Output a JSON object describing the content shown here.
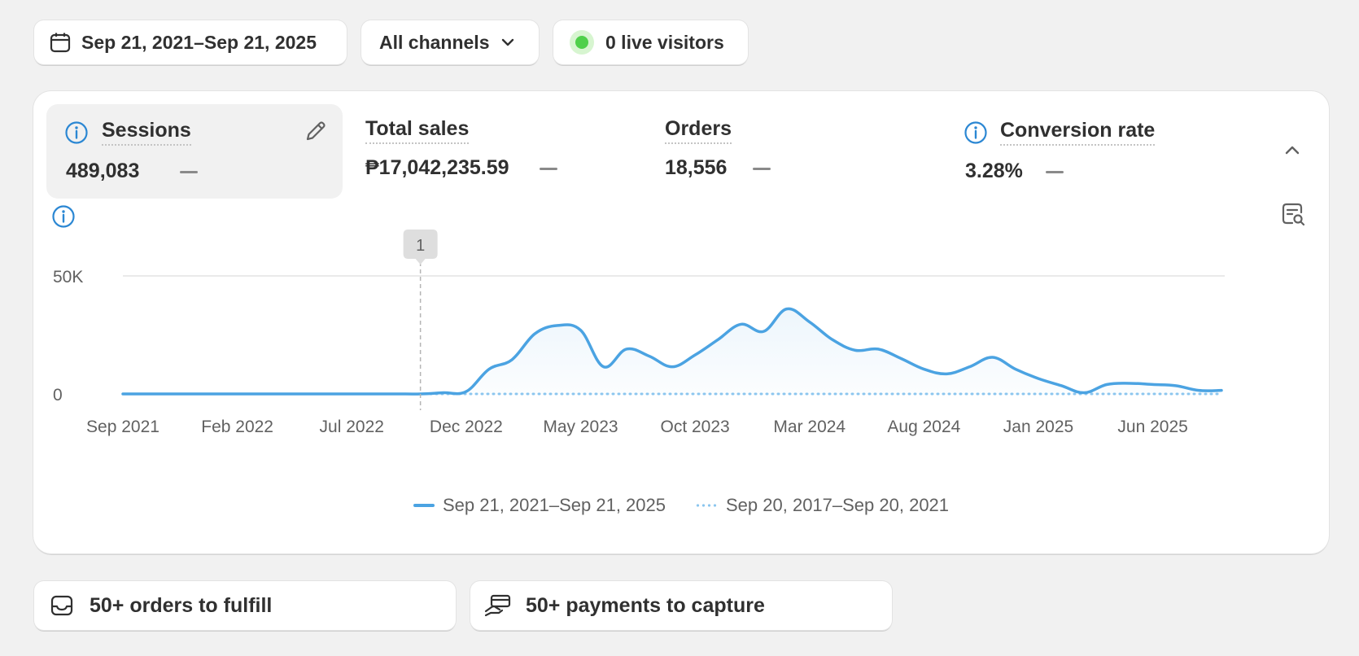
{
  "filters": {
    "date_range": "Sep 21, 2021–Sep 21, 2025",
    "channels": "All channels",
    "live_visitors": "0 live visitors"
  },
  "metrics": [
    {
      "title": "Sessions",
      "value": "489,083"
    },
    {
      "title": "Total sales",
      "value": "₱17,042,235.59"
    },
    {
      "title": "Orders",
      "value": "18,556"
    },
    {
      "title": "Conversion rate",
      "value": "3.28%"
    }
  ],
  "annotation_marker": "1",
  "colors": {
    "accent": "#4ba3e2",
    "live": "#4fd04a",
    "comparison": "#8cc6ef"
  },
  "chart_data": {
    "type": "line",
    "y_ticks": [
      "50K",
      "0"
    ],
    "ylim": [
      0,
      50000
    ],
    "grid": true,
    "legend_position": "bottom",
    "x_tick_labels": [
      "Sep 2021",
      "Feb 2022",
      "Jul 2022",
      "Dec 2022",
      "May 2023",
      "Oct 2023",
      "Mar 2024",
      "Aug 2024",
      "Jan 2025",
      "Jun 2025"
    ],
    "annotation": {
      "label": "1",
      "x": "Oct 2022"
    },
    "series": [
      {
        "name": "Sep 21, 2021–Sep 21, 2025",
        "style": "solid",
        "x": [
          "Sep 2021",
          "Oct 2021",
          "Nov 2021",
          "Dec 2021",
          "Jan 2022",
          "Feb 2022",
          "Mar 2022",
          "Apr 2022",
          "May 2022",
          "Jun 2022",
          "Jul 2022",
          "Aug 2022",
          "Sep 2022",
          "Oct 2022",
          "Nov 2022",
          "Dec 2022",
          "Jan 2023",
          "Feb 2023",
          "Mar 2023",
          "Apr 2023",
          "May 2023",
          "Jun 2023",
          "Jul 2023",
          "Aug 2023",
          "Sep 2023",
          "Oct 2023",
          "Nov 2023",
          "Dec 2023",
          "Jan 2024",
          "Feb 2024",
          "Mar 2024",
          "Apr 2024",
          "May 2024",
          "Jun 2024",
          "Jul 2024",
          "Aug 2024",
          "Sep 2024",
          "Oct 2024",
          "Nov 2024",
          "Dec 2024",
          "Jan 2025",
          "Feb 2025",
          "Mar 2025",
          "Apr 2025",
          "May 2025",
          "Jun 2025",
          "Jul 2025",
          "Aug 2025",
          "Sep 2025"
        ],
        "values": [
          0,
          0,
          0,
          0,
          0,
          0,
          0,
          0,
          0,
          0,
          0,
          0,
          0,
          0,
          500,
          1000,
          10500,
          14500,
          25500,
          29000,
          27000,
          11500,
          19000,
          16000,
          11500,
          16500,
          23000,
          29500,
          26500,
          36000,
          30500,
          23000,
          18500,
          19000,
          15000,
          10500,
          8500,
          11500,
          15500,
          10500,
          6500,
          3500,
          500,
          4000,
          4500,
          4000,
          3500,
          1500,
          1500
        ]
      },
      {
        "name": "Sep 20, 2017–Sep 20, 2021",
        "style": "dotted",
        "values": [
          0,
          0
        ]
      }
    ]
  },
  "tasks": {
    "orders": "50+ orders to fulfill",
    "payments": "50+ payments to capture"
  }
}
